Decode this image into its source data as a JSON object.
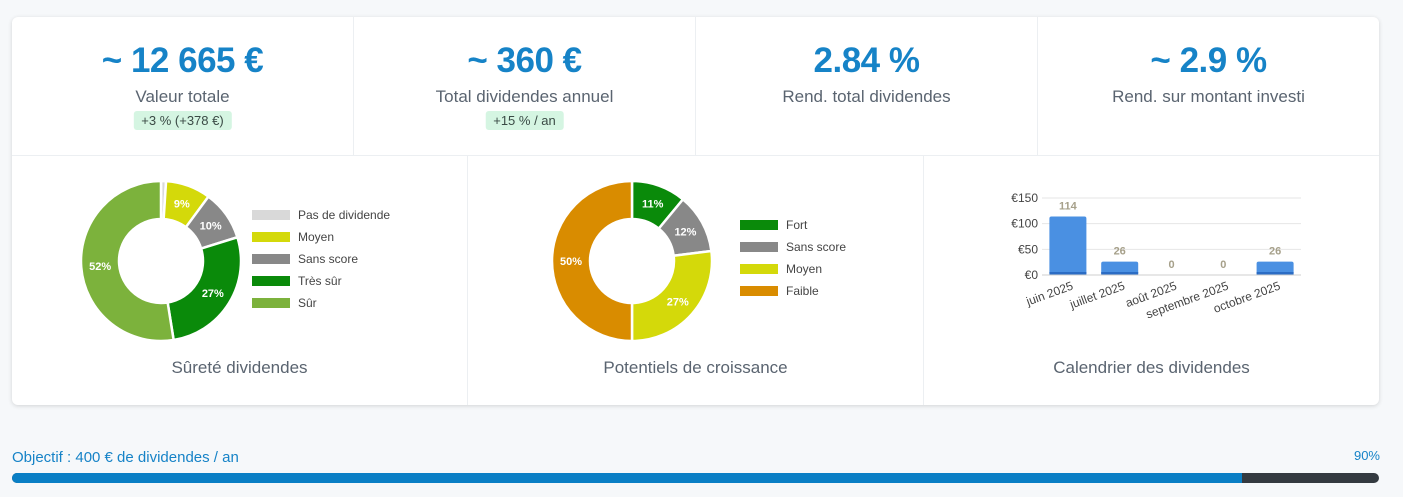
{
  "kpis": [
    {
      "value": "~ 12 665 €",
      "label": "Valeur totale",
      "badge": "+3 % (+378 €)"
    },
    {
      "value": "~ 360 €",
      "label": "Total dividendes annuel",
      "badge": "+15 % / an"
    },
    {
      "value": "2.84 %",
      "label": "Rend. total dividendes",
      "badge": null
    },
    {
      "value": "~ 2.9 %",
      "label": "Rend. sur montant investi",
      "badge": null
    }
  ],
  "chart_data": [
    {
      "type": "pie",
      "title": "Sûreté dividendes",
      "slices": [
        {
          "label": "Pas de dividende",
          "value": 1,
          "display": "",
          "color": "#d9d9d9"
        },
        {
          "label": "Moyen",
          "value": 9,
          "display": "9%",
          "color": "#d4d90a"
        },
        {
          "label": "Sans score",
          "value": 10,
          "display": "10%",
          "color": "#888888"
        },
        {
          "label": "Très sûr",
          "value": 27,
          "display": "27%",
          "color": "#0a8a0a"
        },
        {
          "label": "Sûr",
          "value": 52,
          "display": "52%",
          "color": "#7cb23c"
        }
      ]
    },
    {
      "type": "pie",
      "title": "Potentiels de croissance",
      "slices": [
        {
          "label": "Fort",
          "value": 11,
          "display": "11%",
          "color": "#0a8a0a"
        },
        {
          "label": "Sans score",
          "value": 12,
          "display": "12%",
          "color": "#888888"
        },
        {
          "label": "Moyen",
          "value": 27,
          "display": "27%",
          "color": "#d4d90a"
        },
        {
          "label": "Faible",
          "value": 50,
          "display": "50%",
          "color": "#d98c00"
        }
      ]
    },
    {
      "type": "bar",
      "title": "Calendrier des dividendes",
      "categories": [
        "juin 2025",
        "juillet 2025",
        "août 2025",
        "septembre 2025",
        "octobre 2025"
      ],
      "values": [
        114,
        26,
        0,
        0,
        26
      ],
      "ylim": [
        0,
        150
      ],
      "yticks": [
        "€0",
        "€50",
        "€100",
        "€150"
      ],
      "bar_color": "#4a90e2",
      "label_color": "#a6a08a",
      "grid": true
    }
  ],
  "goal": {
    "label": "Objectif : 400 € de dividendes / an",
    "percent_text": "90%",
    "progress": 0.9
  }
}
